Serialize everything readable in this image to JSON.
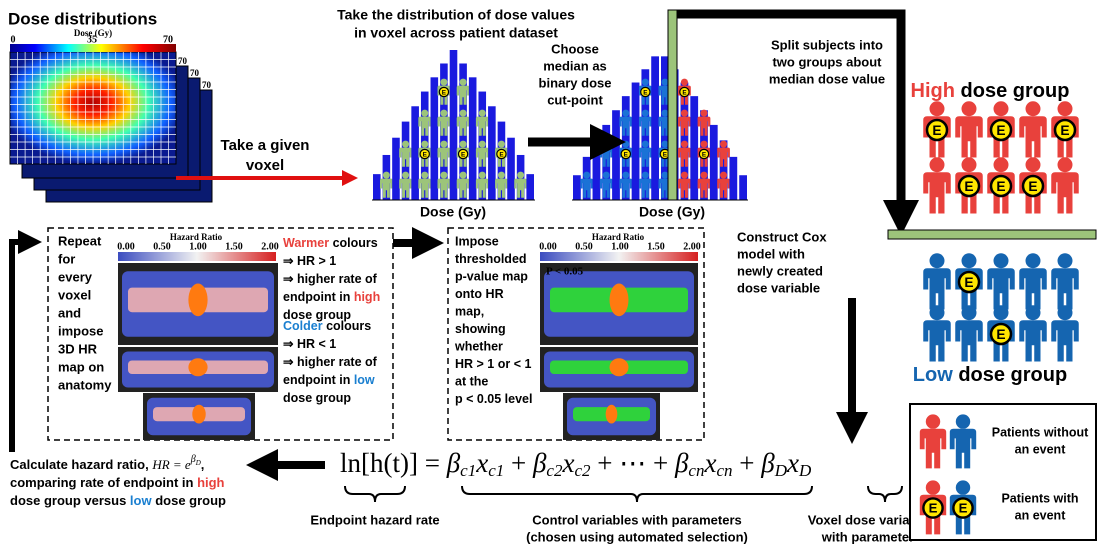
{
  "dose_distributions": {
    "title": "Dose distributions",
    "colorbar_label": "Dose (Gy)",
    "colorbar_ticks": [
      "0",
      "35",
      "70"
    ],
    "stack_labels": [
      "70",
      "70",
      "70"
    ]
  },
  "voxel_step": [
    "Take a given",
    "voxel"
  ],
  "distribution_step": [
    "Take the distribution of dose values",
    "in voxel across patient dataset"
  ],
  "median_step": [
    "Choose",
    "median as",
    "binary dose",
    "cut-point"
  ],
  "x_axis_label": [
    "Dose (Gy)",
    "Dose (Gy)"
  ],
  "split_step": [
    "Split subjects into",
    "two groups about",
    "median dose value"
  ],
  "high_group": [
    "High",
    " dose group"
  ],
  "low_group": [
    "Low",
    " dose group"
  ],
  "repeat_step": [
    "Repeat",
    "for",
    "every",
    "voxel",
    "and",
    "impose",
    "3D HR",
    "map on",
    "anatomy"
  ],
  "hr_map": {
    "colorbar_label": "Hazard Ratio",
    "colorbar_ticks": [
      "0.00",
      "0.50",
      "1.00",
      "1.50",
      "2.00"
    ],
    "warmer": [
      [
        "Warmer",
        " colours"
      ],
      [
        "⇒ HR > 1"
      ],
      [
        "⇒ higher rate of"
      ],
      [
        "endpoint in ",
        "high"
      ],
      [
        "dose group"
      ]
    ],
    "colder": [
      [
        "Colder",
        " colours"
      ],
      [
        "⇒ HR < 1"
      ],
      [
        "⇒ higher rate of"
      ],
      [
        "endpoint in ",
        "low"
      ],
      [
        "dose group"
      ]
    ]
  },
  "p_map": {
    "text": [
      "Impose",
      "thresholded",
      "p-value map",
      "onto HR",
      "map,",
      "showing",
      "whether",
      "HR > 1 or < 1",
      "at the",
      "p < 0.05 level"
    ],
    "colorbar_label": "Hazard Ratio",
    "colorbar_ticks": [
      "0.00",
      "0.50",
      "1.00",
      "1.50",
      "2.00"
    ],
    "threshold_label": "P < 0.05"
  },
  "cox_step": [
    "Construct Cox",
    "model with",
    "newly created",
    "dose variable"
  ],
  "hr_step": {
    "lead": "Calculate hazard ratio, ",
    "formula": "HR = e",
    "formula_sup": "β",
    "formula_sup_sub": "D",
    "end": ",",
    "line2": [
      "comparing rate of endpoint in ",
      "high"
    ],
    "line3": [
      "dose group versus ",
      "low",
      " dose group"
    ]
  },
  "equation": [
    "ln[h(t)]",
    " = ",
    {
      "t": "β",
      "sub": "c1"
    },
    {
      "t": "x",
      "sub": "c1"
    },
    " + ",
    {
      "t": "β",
      "sub": "c2"
    },
    {
      "t": "x",
      "sub": "c2"
    },
    " + ⋯ + ",
    {
      "t": "β",
      "sub": "cn"
    },
    {
      "t": "x",
      "sub": "cn"
    },
    "  + ",
    {
      "t": "β",
      "sub": "D"
    },
    {
      "t": "x",
      "sub": "D"
    }
  ],
  "brace_labels": {
    "endpoint": [
      "Endpoint hazard rate"
    ],
    "control": [
      "Control variables with parameters",
      "(chosen using automated selection)"
    ],
    "voxel": [
      "Voxel dose variable",
      "with parameter"
    ]
  },
  "legend": {
    "without": [
      "Patients without",
      "an event"
    ],
    "with": [
      "Patients with",
      "an event"
    ]
  },
  "event_marker": "E"
}
